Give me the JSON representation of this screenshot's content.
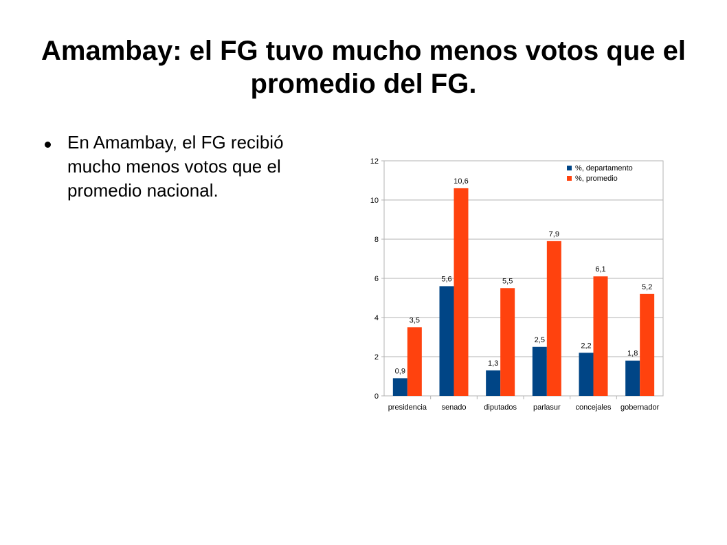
{
  "slide": {
    "title": "Amambay: el FG tuvo mucho menos votos que el promedio del FG.",
    "bullets": [
      "En Amambay, el FG recibió mucho menos votos que el promedio nacional."
    ]
  },
  "chart_data": {
    "type": "bar",
    "categories": [
      "presidencia",
      "senado",
      "diputados",
      "parlasur",
      "concejales",
      "gobernador"
    ],
    "series": [
      {
        "name": "%, departamento",
        "color": "#004586",
        "values": [
          0.9,
          5.6,
          1.3,
          2.5,
          2.2,
          1.8
        ],
        "labels": [
          "0,9",
          "5,6",
          "1,3",
          "2,5",
          "2,2",
          "1,8"
        ]
      },
      {
        "name": "%, promedio",
        "color": "#ff420e",
        "values": [
          3.5,
          10.6,
          5.5,
          7.9,
          6.1,
          5.2
        ],
        "labels": [
          "3,5",
          "10,6",
          "5,5",
          "7,9",
          "6,1",
          "5,2"
        ]
      }
    ],
    "yticks": [
      0,
      2,
      4,
      6,
      8,
      10,
      12
    ],
    "ylim": [
      0,
      12
    ],
    "grid": true,
    "legend": "top-right"
  }
}
